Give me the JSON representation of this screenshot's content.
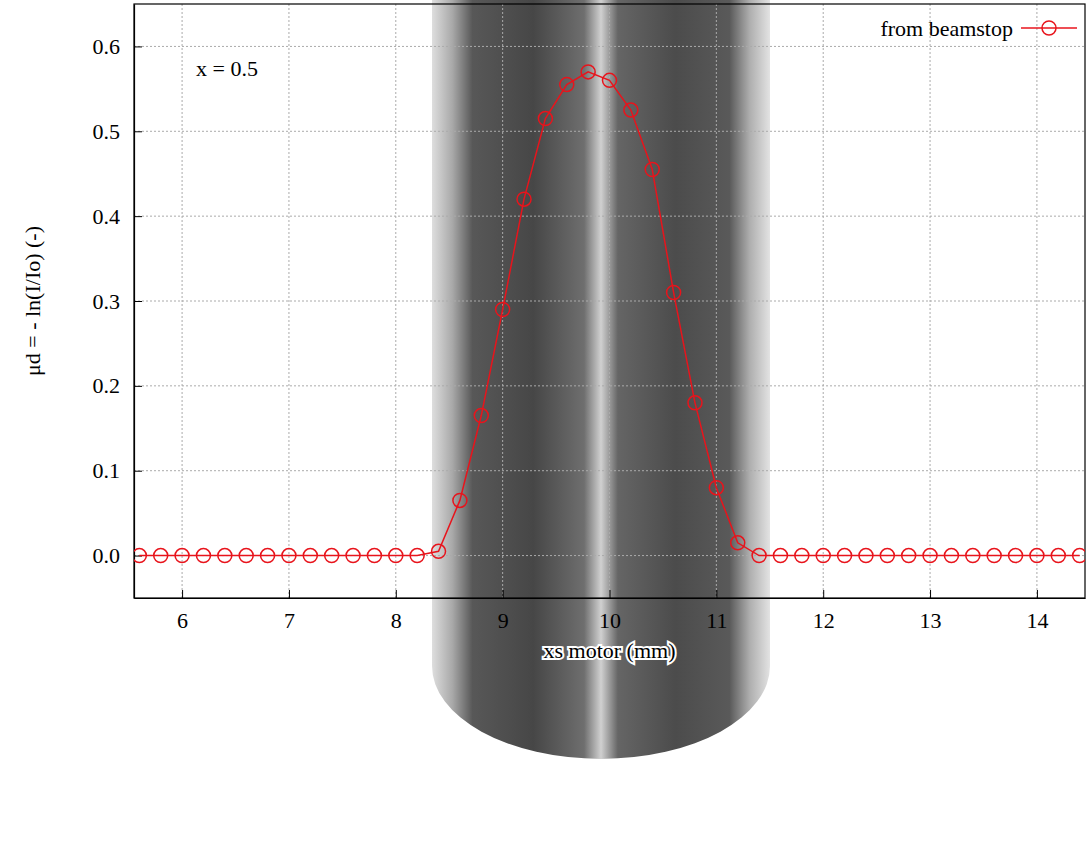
{
  "chart_data": {
    "type": "line",
    "annotation": "x = 0.5",
    "x_label": "xs motor (mm)",
    "y_label": "μd = - ln(I/Io) (-)",
    "x": [
      5.6,
      5.8,
      6.0,
      6.2,
      6.4,
      6.6,
      6.8,
      7.0,
      7.2,
      7.4,
      7.6,
      7.8,
      8.0,
      8.2,
      8.4,
      8.6,
      8.8,
      9.0,
      9.2,
      9.4,
      9.6,
      9.8,
      10.0,
      10.2,
      10.4,
      10.6,
      10.8,
      11.0,
      11.2,
      11.4,
      11.6,
      11.8,
      12.0,
      12.2,
      12.4,
      12.6,
      12.8,
      13.0,
      13.2,
      13.4,
      13.6,
      13.8,
      14.0,
      14.2,
      14.4
    ],
    "series": [
      {
        "name": "from beamstop",
        "color": "#e8141c",
        "marker": "circle",
        "line_style": "solid",
        "values": [
          0,
          0,
          0,
          0,
          0,
          0,
          0,
          0,
          0,
          0,
          0,
          0,
          0,
          0,
          0.005,
          0.065,
          0.165,
          0.29,
          0.42,
          0.515,
          0.555,
          0.57,
          0.56,
          0.525,
          0.455,
          0.31,
          0.18,
          0.08,
          0.015,
          0,
          0,
          0,
          0,
          0,
          0,
          0,
          0,
          0,
          0,
          0,
          0,
          0,
          0,
          0,
          0
        ]
      }
    ],
    "xlim": [
      5.55,
      14.45
    ],
    "ylim": [
      -0.05,
      0.65
    ],
    "xticks": [
      6,
      7,
      8,
      9,
      10,
      11,
      12,
      13,
      14
    ],
    "yticks": [
      {
        "value": 0,
        "label": "0.0"
      },
      0.1,
      0.2,
      0.3,
      0.4,
      0.5,
      0.6
    ],
    "grid": true,
    "legend": "upper right"
  }
}
